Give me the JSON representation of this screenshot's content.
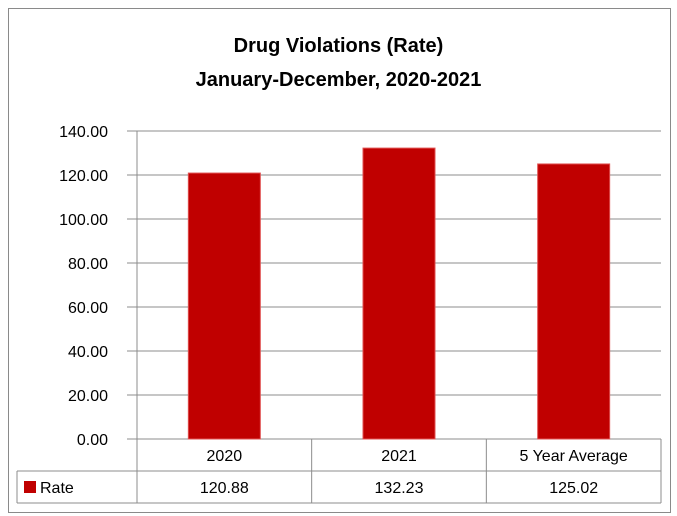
{
  "chart_data": {
    "type": "bar",
    "title": [
      "Drug Violations (Rate)",
      "January-December, 2020-2021"
    ],
    "categories": [
      "2020",
      "2021",
      "5 Year Average"
    ],
    "series": [
      {
        "name": "Rate",
        "values": [
          120.88,
          132.23,
          125.02
        ],
        "value_labels": [
          "120.88",
          "132.23",
          "125.02"
        ],
        "color": "#c00000"
      }
    ],
    "ylim": [
      0,
      140
    ],
    "yticks": [
      "0.00",
      "20.00",
      "40.00",
      "60.00",
      "80.00",
      "100.00",
      "120.00",
      "140.00"
    ],
    "grid": true,
    "legend": "data-table"
  }
}
